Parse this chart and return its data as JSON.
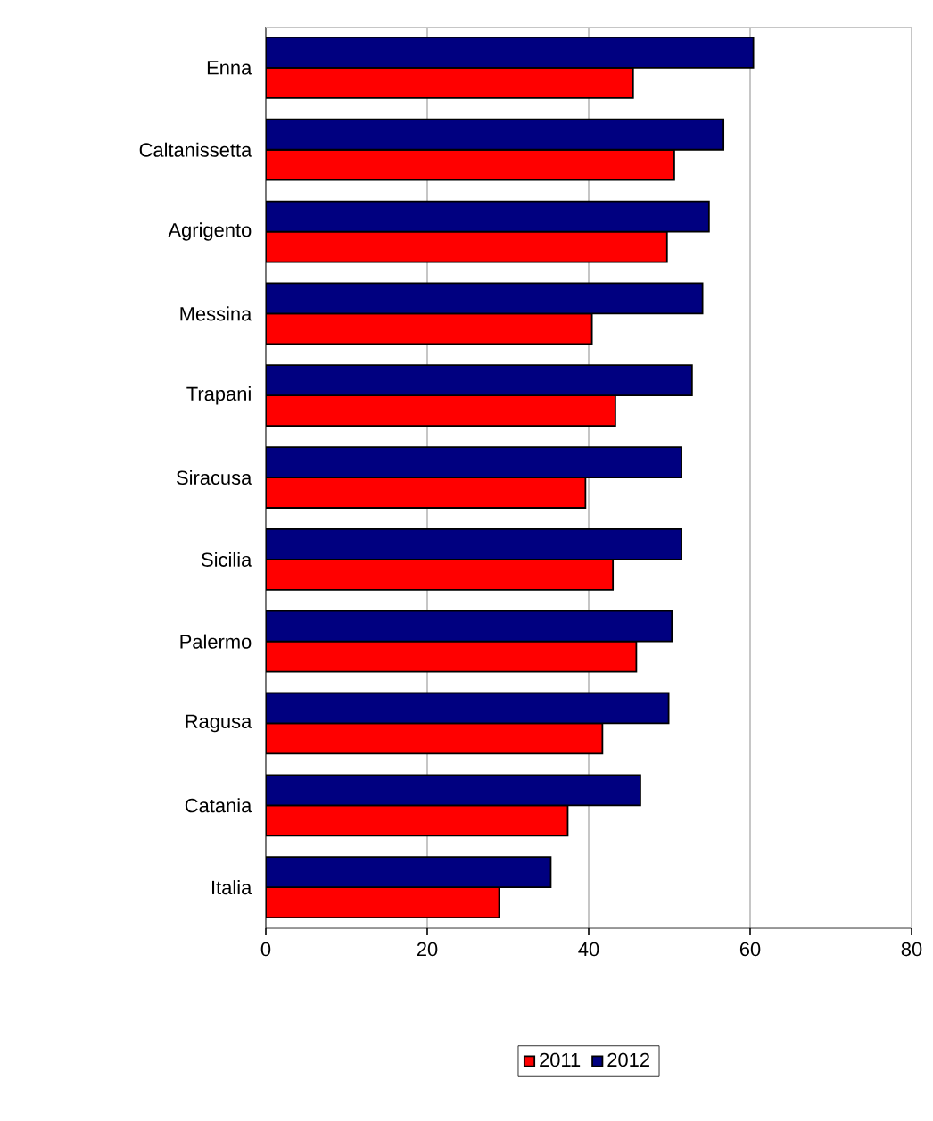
{
  "chart_data": {
    "type": "bar",
    "orientation": "horizontal",
    "categories": [
      "Enna",
      "Caltanissetta",
      "Agrigento",
      "Messina",
      "Trapani",
      "Siracusa",
      "Sicilia",
      "Palermo",
      "Ragusa",
      "Catania",
      "Italia"
    ],
    "series": [
      {
        "name": "2011",
        "color": "#ff0000",
        "values": [
          45.5,
          50.6,
          49.7,
          40.4,
          43.3,
          39.6,
          43.0,
          45.9,
          41.7,
          37.4,
          28.9
        ]
      },
      {
        "name": "2012",
        "color": "#000080",
        "values": [
          60.4,
          56.7,
          54.9,
          54.1,
          52.8,
          51.5,
          51.5,
          50.3,
          49.9,
          46.4,
          35.3
        ]
      }
    ],
    "xlim": [
      0,
      80
    ],
    "xticks": [
      0,
      20,
      40,
      60,
      80
    ],
    "grid": "x",
    "legend": "bottom"
  }
}
